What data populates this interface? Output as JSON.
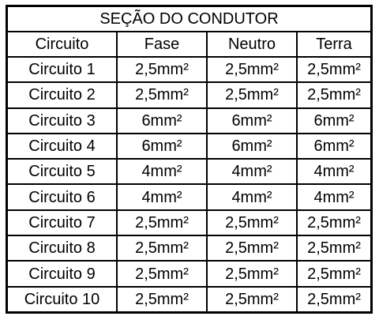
{
  "table": {
    "title": "SEÇÃO DO CONDUTOR",
    "headers": [
      "Circuito",
      "Fase",
      "Neutro",
      "Terra"
    ],
    "rows": [
      [
        "Circuito 1",
        "2,5mm²",
        "2,5mm²",
        "2,5mm²"
      ],
      [
        "Circuito 2",
        "2,5mm²",
        "2,5mm²",
        "2,5mm²"
      ],
      [
        "Circuito 3",
        "6mm²",
        "6mm²",
        "6mm²"
      ],
      [
        "Circuito 4",
        "6mm²",
        "6mm²",
        "6mm²"
      ],
      [
        "Circuito 5",
        "4mm²",
        "4mm²",
        "4mm²"
      ],
      [
        "Circuito 6",
        "4mm²",
        "4mm²",
        "4mm²"
      ],
      [
        "Circuito 7",
        "2,5mm²",
        "2,5mm²",
        "2,5mm²"
      ],
      [
        "Circuito 8",
        "2,5mm²",
        "2,5mm²",
        "2,5mm²"
      ],
      [
        "Circuito 9",
        "2,5mm²",
        "2,5mm²",
        "2,5mm²"
      ],
      [
        "Circuito 10",
        "2,5mm²",
        "2,5mm²",
        "2,5mm²"
      ]
    ]
  }
}
